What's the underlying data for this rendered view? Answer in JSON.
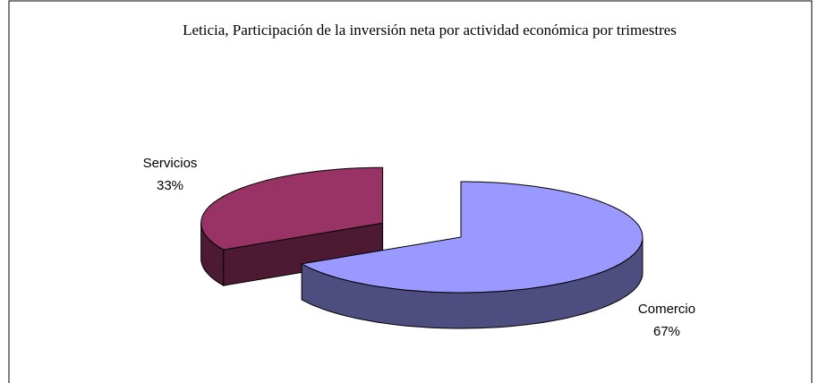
{
  "chart_data": {
    "type": "pie",
    "title": "Leticia, Participación de la inversión neta por actividad económica por trimestres",
    "categories": [
      "Comercio",
      "Servicios"
    ],
    "values": [
      67,
      33
    ],
    "value_labels": [
      "67%",
      "33%"
    ],
    "colors": [
      "#9999ff",
      "#993366"
    ]
  }
}
